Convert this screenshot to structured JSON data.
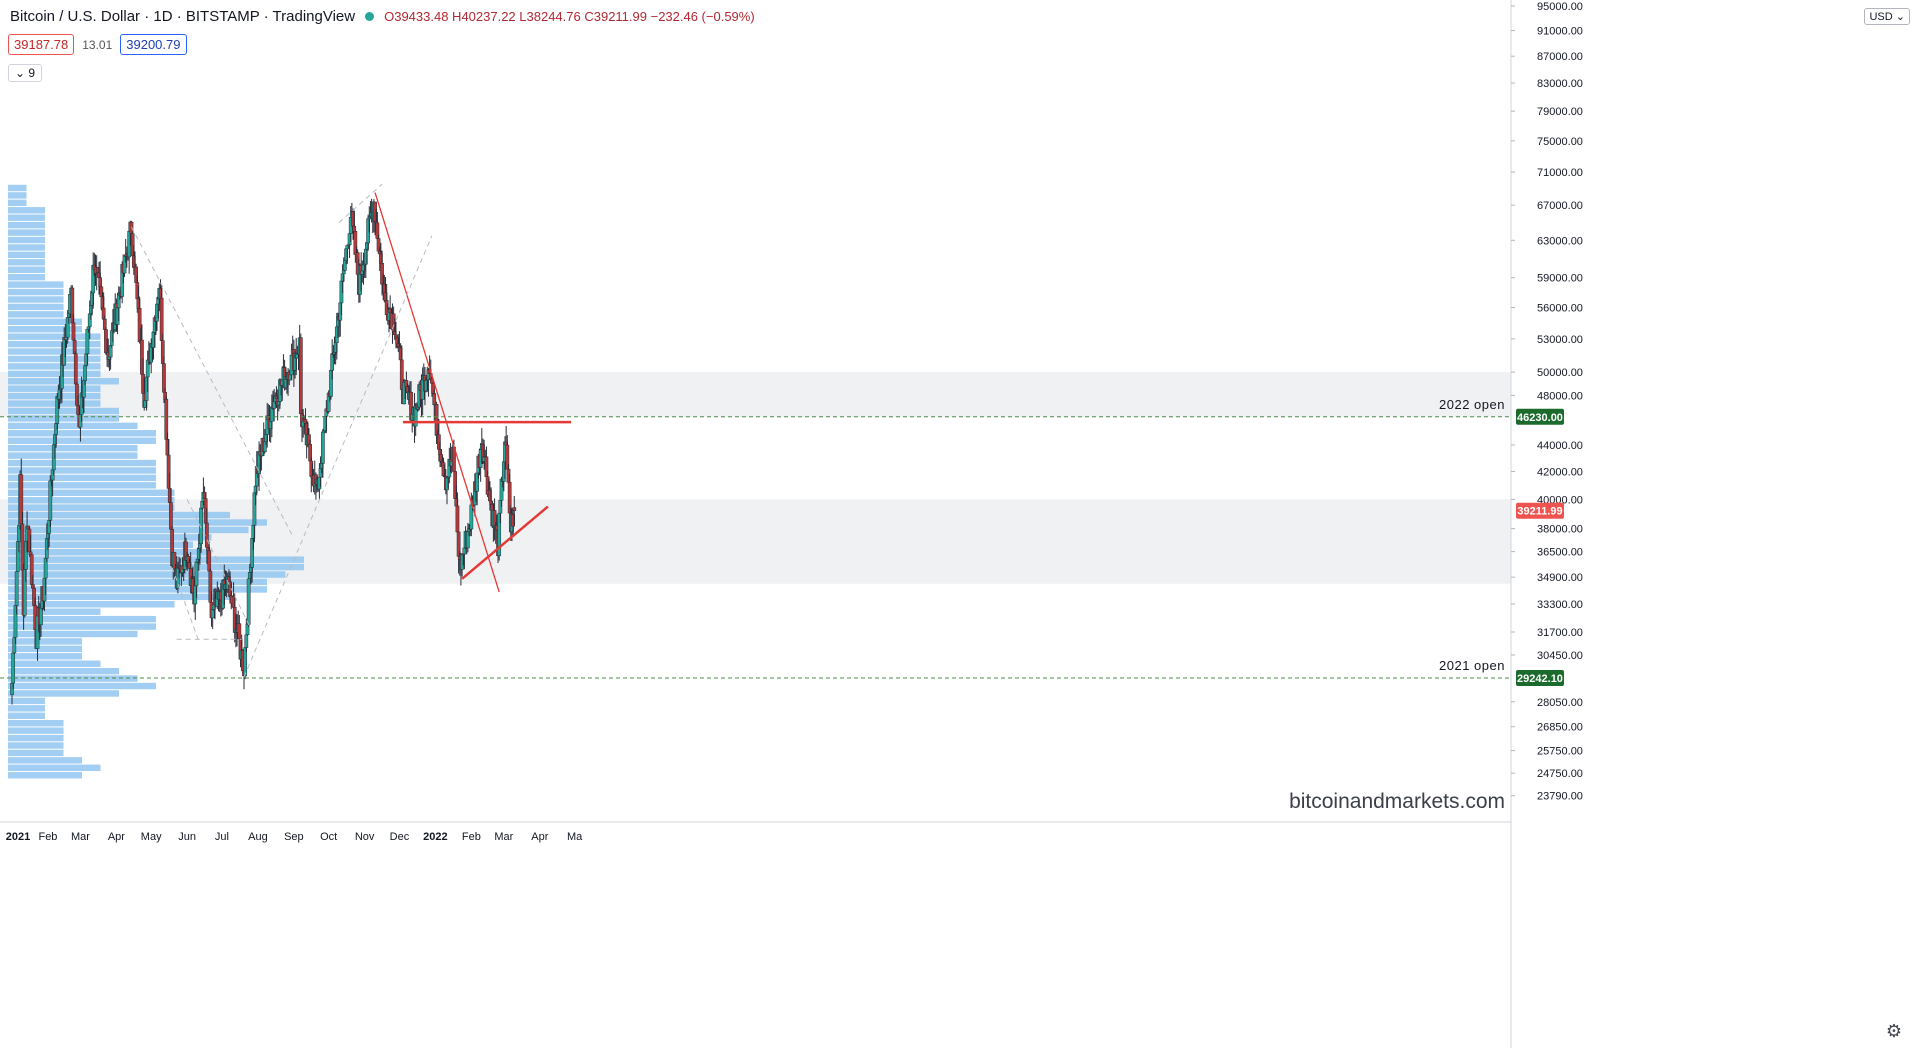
{
  "header": {
    "title": "Bitcoin / U.S. Dollar · 1D · BITSTAMP · TradingView",
    "ohlc": "O39433.48 H40237.22 L38244.76 C39211.99 −232.46 (−0.59%)"
  },
  "quotes": {
    "sell": "39187.78",
    "spread": "13.01",
    "buy": "39200.79"
  },
  "indicator_collapse": "9",
  "currency": "USD",
  "watermark": "bitcoinandmarkets.com",
  "colors": {
    "up": "#26a69a",
    "down": "#b23a3a",
    "volume_profile": "#90c6f0",
    "trend_red": "#e53935",
    "grid": "#f0f3fa"
  },
  "chart_data": {
    "type": "candlestick",
    "symbol": "BTCUSD",
    "exchange": "BITSTAMP",
    "interval": "1D",
    "x_ticks": [
      "2021",
      "Feb",
      "Mar",
      "Apr",
      "May",
      "Jun",
      "Jul",
      "Aug",
      "Sep",
      "Oct",
      "Nov",
      "Dec",
      "2022",
      "Feb",
      "Mar",
      "Apr",
      "Ma"
    ],
    "y_scale": "log",
    "y_ticks": [
      23790,
      24750,
      25750,
      26850,
      28050,
      29242.1,
      30450,
      31700,
      33300,
      34900,
      36500,
      38000,
      39211.99,
      40000,
      42000,
      44000,
      46230,
      48000,
      50000,
      53000,
      56000,
      59000,
      63000,
      67000,
      71000,
      75000,
      79000,
      83000,
      87000,
      91000,
      95000
    ],
    "ylim": [
      23000,
      95000
    ],
    "price_levels": [
      {
        "label": "2022 open",
        "value": 46230,
        "value_label": "46230.00",
        "color": "#2e7d32"
      },
      {
        "label": "2021 open",
        "value": 29242.1,
        "value_label": "29242.10",
        "color": "#2e7d32"
      }
    ],
    "last_price": {
      "value": 39211.99,
      "label": "39211.99",
      "color": "#ef5350"
    },
    "zones": [
      {
        "from": 46230,
        "to": 50000
      },
      {
        "from": 34500,
        "to": 40000
      }
    ],
    "anchors": [
      [
        "2021-01-01",
        29000
      ],
      [
        "2021-01-08",
        41000
      ],
      [
        "2021-01-11",
        33000
      ],
      [
        "2021-01-14",
        39000
      ],
      [
        "2021-01-22",
        31500
      ],
      [
        "2021-01-28",
        34000
      ],
      [
        "2021-02-08",
        46500
      ],
      [
        "2021-02-21",
        57500
      ],
      [
        "2021-02-28",
        45000
      ],
      [
        "2021-03-13",
        61000
      ],
      [
        "2021-03-25",
        51500
      ],
      [
        "2021-04-14",
        64500
      ],
      [
        "2021-04-25",
        48000
      ],
      [
        "2021-05-08",
        58500
      ],
      [
        "2021-05-12",
        49500
      ],
      [
        "2021-05-19",
        36500
      ],
      [
        "2021-05-23",
        34500
      ],
      [
        "2021-06-01",
        37000
      ],
      [
        "2021-06-07",
        33500
      ],
      [
        "2021-06-15",
        40500
      ],
      [
        "2021-06-22",
        32500
      ],
      [
        "2021-07-06",
        34500
      ],
      [
        "2021-07-20",
        29800
      ],
      [
        "2021-07-30",
        41500
      ],
      [
        "2021-08-14",
        47500
      ],
      [
        "2021-09-06",
        52500
      ],
      [
        "2021-09-07",
        46500
      ],
      [
        "2021-09-21",
        40500
      ],
      [
        "2021-10-01",
        48000
      ],
      [
        "2021-10-20",
        66000
      ],
      [
        "2021-10-27",
        58500
      ],
      [
        "2021-11-09",
        67500
      ],
      [
        "2021-11-18",
        57000
      ],
      [
        "2021-11-27",
        54500
      ],
      [
        "2021-12-04",
        48500
      ],
      [
        "2021-12-14",
        46500
      ],
      [
        "2021-12-27",
        51000
      ],
      [
        "2022-01-01",
        46230
      ],
      [
        "2022-01-10",
        41500
      ],
      [
        "2022-01-16",
        43000
      ],
      [
        "2022-01-22",
        35500
      ],
      [
        "2022-01-31",
        38500
      ],
      [
        "2022-02-10",
        44500
      ],
      [
        "2022-02-14",
        42000
      ],
      [
        "2022-02-17",
        40000
      ],
      [
        "2022-02-24",
        37000
      ],
      [
        "2022-03-02",
        44500
      ],
      [
        "2022-03-07",
        38000
      ],
      [
        "2022-03-10",
        39200
      ]
    ],
    "ohlc_last": {
      "open": 39433.48,
      "high": 40237.22,
      "low": 38244.76,
      "close": 39211.99,
      "change": -232.46,
      "change_pct": -0.59
    },
    "drawings": [
      {
        "type": "trendline",
        "color": "red",
        "from": [
          "2021-11-10",
          68500
        ],
        "to": [
          "2022-02-25",
          34000
        ]
      },
      {
        "type": "trendline",
        "color": "red",
        "from": [
          "2022-01-24",
          34800
        ],
        "to": [
          "2022-04-08",
          39500
        ]
      },
      {
        "type": "hline",
        "color": "red",
        "from": [
          "2021-12-04",
          45800
        ],
        "to": [
          "2022-04-28",
          45800
        ]
      },
      {
        "type": "dashed",
        "color": "grey",
        "from": [
          "2021-04-14",
          64500
        ],
        "to": [
          "2021-08-31",
          37500
        ]
      },
      {
        "type": "dashed",
        "color": "grey",
        "from": [
          "2021-07-20",
          29300
        ],
        "to": [
          "2021-12-29",
          63500
        ]
      },
      {
        "type": "dashed",
        "color": "grey",
        "from": [
          "2021-10-10",
          65000
        ],
        "to": [
          "2021-11-16",
          69500
        ]
      },
      {
        "type": "dashed",
        "color": "grey",
        "from": [
          "2021-05-19",
          35500
        ],
        "to": [
          "2021-06-11",
          31200
        ]
      },
      {
        "type": "dashed",
        "color": "grey",
        "from": [
          "2021-05-23",
          31300
        ],
        "to": [
          "2021-07-18",
          31300
        ]
      },
      {
        "type": "dashed",
        "color": "grey",
        "from": [
          "2021-06-01",
          40000
        ],
        "to": [
          "2021-07-25",
          32000
        ]
      }
    ],
    "volume_profile": {
      "from": 24500,
      "to": 69500,
      "widths": [
        4,
        5,
        4,
        3,
        3,
        3,
        3,
        3,
        2,
        2,
        2,
        6,
        8,
        7,
        6,
        5,
        4,
        4,
        4,
        7,
        8,
        8,
        5,
        9,
        12,
        14,
        14,
        15,
        16,
        16,
        11,
        10,
        11,
        13,
        14,
        12,
        9,
        9,
        9,
        8,
        8,
        8,
        8,
        7,
        7,
        8,
        8,
        7,
        6,
        6,
        5,
        5,
        5,
        6,
        5,
        5,
        5,
        5,
        5,
        5,
        4,
        4,
        3,
        3,
        3,
        3,
        3,
        2,
        2,
        2,
        2,
        2,
        2,
        2,
        2,
        2,
        2,
        1,
        1,
        1
      ]
    },
    "legend": "none",
    "grid": false
  }
}
